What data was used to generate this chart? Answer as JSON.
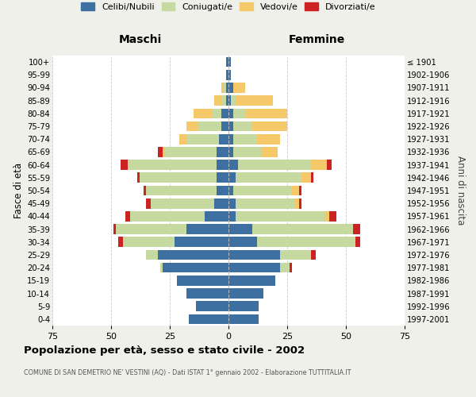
{
  "age_groups": [
    "0-4",
    "5-9",
    "10-14",
    "15-19",
    "20-24",
    "25-29",
    "30-34",
    "35-39",
    "40-44",
    "45-49",
    "50-54",
    "55-59",
    "60-64",
    "65-69",
    "70-74",
    "75-79",
    "80-84",
    "85-89",
    "90-94",
    "95-99",
    "100+"
  ],
  "birth_years": [
    "1997-2001",
    "1992-1996",
    "1987-1991",
    "1982-1986",
    "1977-1981",
    "1972-1976",
    "1967-1971",
    "1962-1966",
    "1957-1961",
    "1952-1956",
    "1947-1951",
    "1942-1946",
    "1937-1941",
    "1932-1936",
    "1927-1931",
    "1922-1926",
    "1917-1921",
    "1912-1916",
    "1907-1911",
    "1902-1906",
    "≤ 1901"
  ],
  "maschi": {
    "celibi": [
      17,
      14,
      18,
      22,
      28,
      30,
      23,
      18,
      10,
      6,
      5,
      5,
      5,
      5,
      4,
      3,
      3,
      1,
      1,
      1,
      1
    ],
    "coniugati": [
      0,
      0,
      0,
      0,
      1,
      5,
      22,
      30,
      32,
      27,
      30,
      33,
      38,
      22,
      14,
      10,
      4,
      2,
      1,
      0,
      0
    ],
    "vedovi": [
      0,
      0,
      0,
      0,
      0,
      0,
      0,
      0,
      0,
      0,
      0,
      0,
      0,
      1,
      3,
      5,
      8,
      3,
      1,
      0,
      0
    ],
    "divorziati": [
      0,
      0,
      0,
      0,
      0,
      0,
      2,
      1,
      2,
      2,
      1,
      1,
      3,
      2,
      0,
      0,
      0,
      0,
      0,
      0,
      0
    ]
  },
  "femmine": {
    "nubili": [
      13,
      13,
      15,
      20,
      22,
      22,
      12,
      10,
      3,
      3,
      2,
      3,
      4,
      2,
      2,
      2,
      2,
      1,
      2,
      1,
      1
    ],
    "coniugate": [
      0,
      0,
      0,
      0,
      4,
      13,
      42,
      43,
      38,
      25,
      25,
      28,
      31,
      12,
      10,
      8,
      5,
      2,
      0,
      0,
      0
    ],
    "vedove": [
      0,
      0,
      0,
      0,
      0,
      0,
      0,
      0,
      2,
      2,
      3,
      4,
      7,
      7,
      10,
      15,
      18,
      16,
      5,
      0,
      0
    ],
    "divorziate": [
      0,
      0,
      0,
      0,
      1,
      2,
      2,
      3,
      3,
      1,
      1,
      1,
      2,
      0,
      0,
      0,
      0,
      0,
      0,
      0,
      0
    ]
  },
  "colors": {
    "celibi": "#3d6fa0",
    "coniugati": "#c5d9a0",
    "vedovi": "#f5c96a",
    "divorziati": "#cc2222"
  },
  "legend_labels": [
    "Celibi/Nubili",
    "Coniugati/e",
    "Vedovi/e",
    "Divorziati/e"
  ],
  "title": "Popolazione per età, sesso e stato civile - 2002",
  "subtitle": "COMUNE DI SAN DEMETRIO NE' VESTINI (AQ) - Dati ISTAT 1° gennaio 2002 - Elaborazione TUTTITALIA.IT",
  "xlabel_left": "Maschi",
  "xlabel_right": "Femmine",
  "ylabel_left": "Fasce di età",
  "ylabel_right": "Anni di nascita",
  "xlim": 75,
  "background_color": "#f0f0eb",
  "plot_background": "#ffffff",
  "grid_color": "#cccccc"
}
